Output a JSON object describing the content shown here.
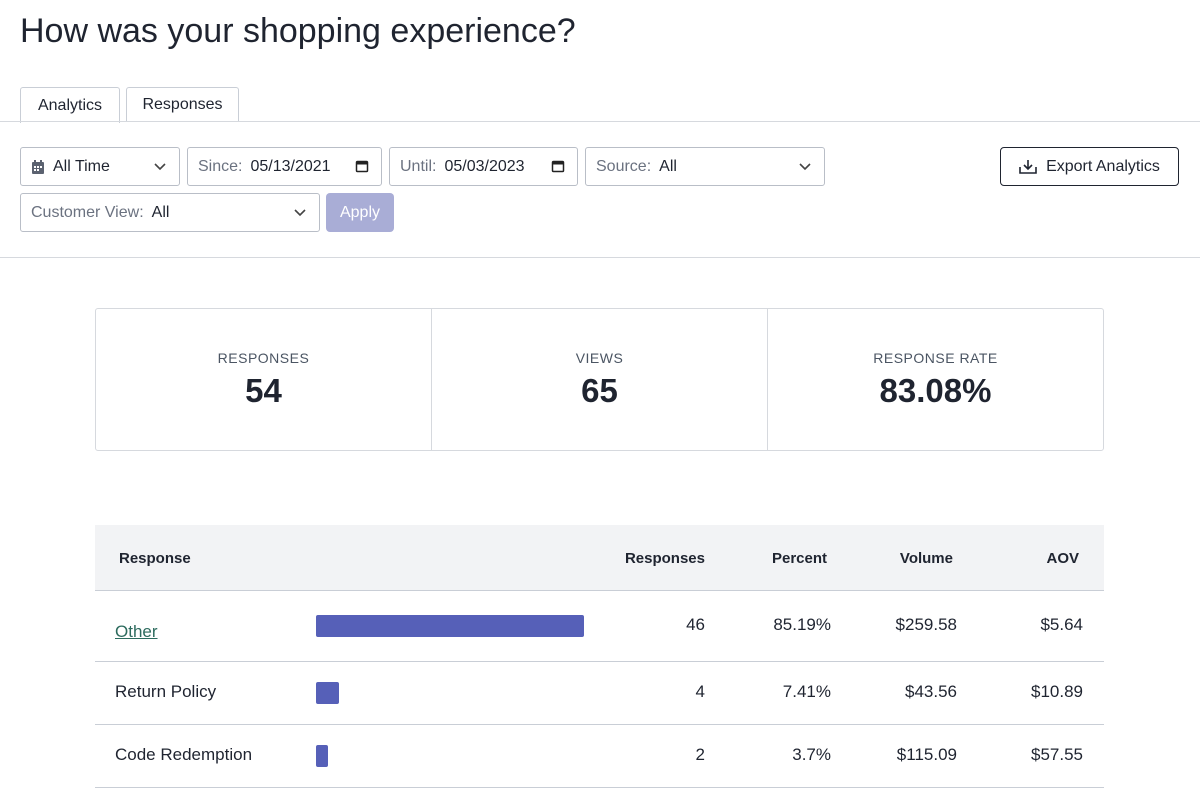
{
  "header": {
    "title": "How was your shopping experience?"
  },
  "tabs": [
    "Analytics",
    "Responses"
  ],
  "filters": {
    "range": "All Time",
    "since": {
      "label": "Since:",
      "value": "05/13/2021"
    },
    "until": {
      "label": "Until:",
      "value": "05/03/2023"
    },
    "source": {
      "label": "Source:",
      "value": "All"
    },
    "customer_view": {
      "label": "Customer View:",
      "value": "All"
    },
    "apply": "Apply",
    "export": "Export Analytics"
  },
  "stats": [
    {
      "label": "RESPONSES",
      "value": 54
    },
    {
      "label": "VIEWS",
      "value": 65
    },
    {
      "label": "RESPONSE RATE",
      "value": "83.08%"
    }
  ],
  "table": {
    "columns": [
      "Response",
      "Responses",
      "Percent",
      "Volume",
      "AOV"
    ],
    "bar_color": "#5660b8",
    "rows": [
      {
        "response": "Other",
        "link": true,
        "responses": 46,
        "percent": "85.19%",
        "volume": "$259.58",
        "aov": "$5.64"
      },
      {
        "response": "Return Policy",
        "responses": 4,
        "percent": "7.41%",
        "volume": "$43.56",
        "aov": "$10.89"
      },
      {
        "response": "Code Redemption",
        "responses": 2,
        "percent": "3.7%",
        "volume": "$115.09",
        "aov": "$57.55"
      }
    ]
  }
}
